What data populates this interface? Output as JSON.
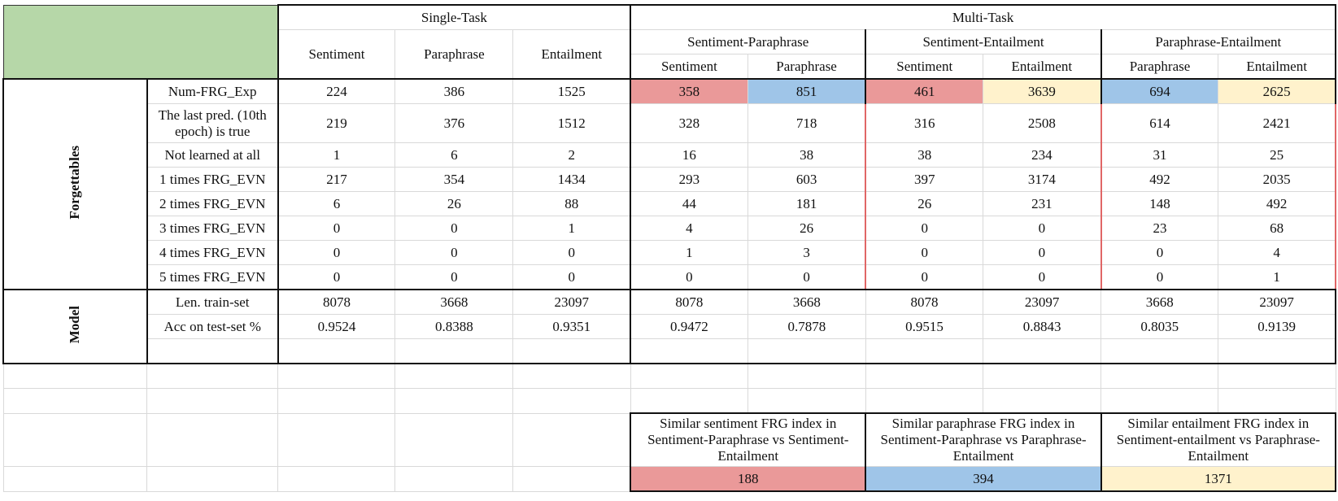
{
  "header": {
    "single_task": "Single-Task",
    "multi_task": "Multi-Task",
    "single": [
      "Sentiment",
      "Paraphrase",
      "Entailment"
    ],
    "pairs": [
      "Sentiment-Paraphrase",
      "Sentiment-Entailment",
      "Paraphrase-Entailment"
    ],
    "sub": [
      "Sentiment",
      "Paraphrase",
      "Sentiment",
      "Entailment",
      "Paraphrase",
      "Entailment"
    ]
  },
  "groups": {
    "forgettables": "Forgettables",
    "model": "Model"
  },
  "rows": [
    {
      "label": "Num-FRG_Exp",
      "values": [
        "224",
        "386",
        "1525",
        "358",
        "851",
        "461",
        "3639",
        "694",
        "2625"
      ]
    },
    {
      "label": "The last pred. (10th epoch) is true",
      "values": [
        "219",
        "376",
        "1512",
        "328",
        "718",
        "316",
        "2508",
        "614",
        "2421"
      ]
    },
    {
      "label": "Not learned at all",
      "values": [
        "1",
        "6",
        "2",
        "16",
        "38",
        "38",
        "234",
        "31",
        "25"
      ]
    },
    {
      "label": "1 times FRG_EVN",
      "values": [
        "217",
        "354",
        "1434",
        "293",
        "603",
        "397",
        "3174",
        "492",
        "2035"
      ]
    },
    {
      "label": "2 times FRG_EVN",
      "values": [
        "6",
        "26",
        "88",
        "44",
        "181",
        "26",
        "231",
        "148",
        "492"
      ]
    },
    {
      "label": "3 times FRG_EVN",
      "values": [
        "0",
        "0",
        "1",
        "4",
        "26",
        "0",
        "0",
        "23",
        "68"
      ]
    },
    {
      "label": "4 times FRG_EVN",
      "values": [
        "0",
        "0",
        "0",
        "1",
        "3",
        "0",
        "0",
        "0",
        "4"
      ]
    },
    {
      "label": "5 times FRG_EVN",
      "values": [
        "0",
        "0",
        "0",
        "0",
        "0",
        "0",
        "0",
        "0",
        "1"
      ]
    },
    {
      "label": "Len. train-set",
      "values": [
        "8078",
        "3668",
        "23097",
        "8078",
        "3668",
        "8078",
        "23097",
        "3668",
        "23097"
      ]
    },
    {
      "label": "Acc on test-set %",
      "values": [
        "0.9524",
        "0.8388",
        "0.9351",
        "0.9472",
        "0.7878",
        "0.9515",
        "0.8843",
        "0.8035",
        "0.9139"
      ]
    }
  ],
  "similar": {
    "labels": [
      "Similar sentiment FRG index in Sentiment-Paraphrase vs Sentiment-Entailment",
      "Similar paraphrase FRG index in Sentiment-Paraphrase vs Paraphrase-Entailment",
      "Similar entailment FRG index in Sentiment-entailment vs Paraphrase-Entailment"
    ],
    "values": [
      "188",
      "394",
      "1371"
    ]
  },
  "colors": {
    "corner": "#b6d7a8",
    "red": "#ea9999",
    "blue": "#9fc5e8",
    "yellow": "#fff2cc",
    "red_border": "#e06666"
  }
}
